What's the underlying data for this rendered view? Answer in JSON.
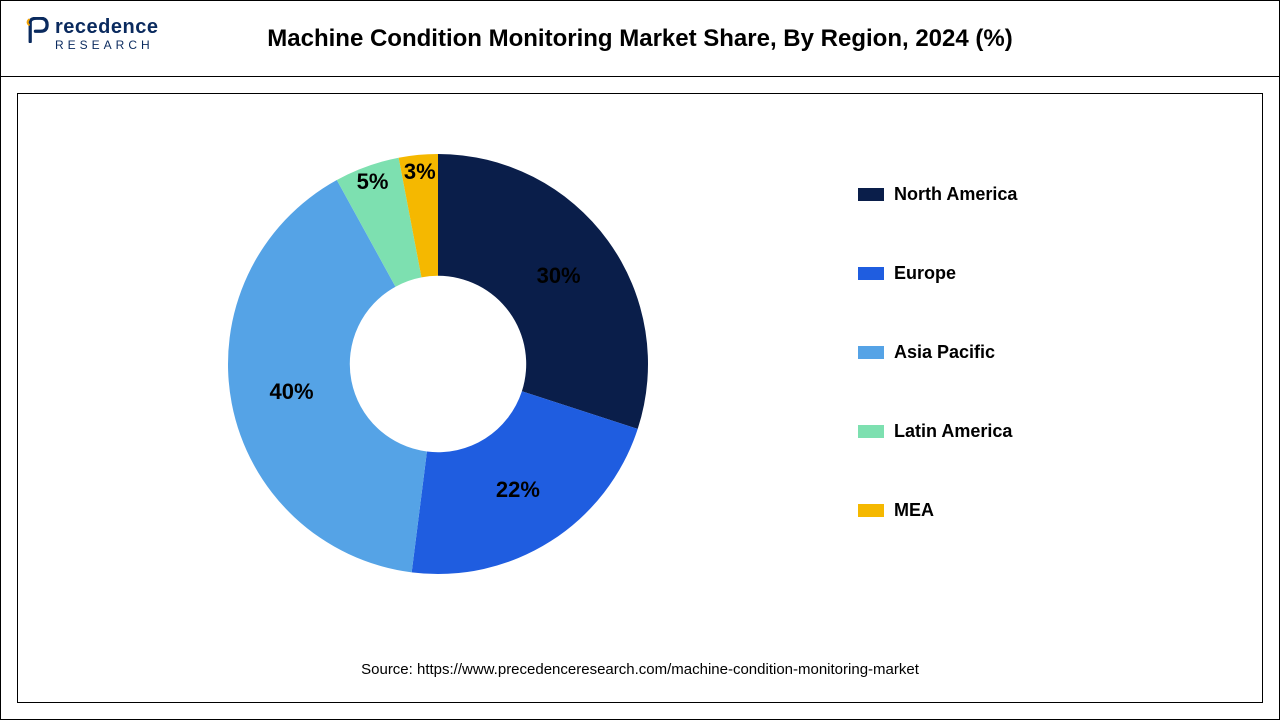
{
  "header": {
    "logo_main": "recedence",
    "logo_sub": "RESEARCH",
    "title": "Machine Condition Monitoring Market Share, By Region, 2024 (%)"
  },
  "chart": {
    "type": "donut",
    "start_angle_deg": 0,
    "inner_radius_ratio": 0.42,
    "outer_radius": 210,
    "background_color": "#ffffff",
    "segments": [
      {
        "label": "North America",
        "value": 30,
        "color": "#0a1e4a",
        "display": "30%"
      },
      {
        "label": "Europe",
        "value": 22,
        "color": "#1f5de0",
        "display": "22%"
      },
      {
        "label": "Asia Pacific",
        "value": 40,
        "color": "#55a3e6",
        "display": "40%"
      },
      {
        "label": "Latin America",
        "value": 5,
        "color": "#7de0b0",
        "display": "5%"
      },
      {
        "label": "MEA",
        "value": 3,
        "color": "#f5b800",
        "display": "3%"
      }
    ],
    "label_fontsize": 22,
    "label_fontweight": "700"
  },
  "legend": {
    "fontsize": 18,
    "fontweight": "700",
    "swatch_width": 26,
    "swatch_height": 13
  },
  "source": "Source: https://www.precedenceresearch.com/machine-condition-monitoring-market"
}
